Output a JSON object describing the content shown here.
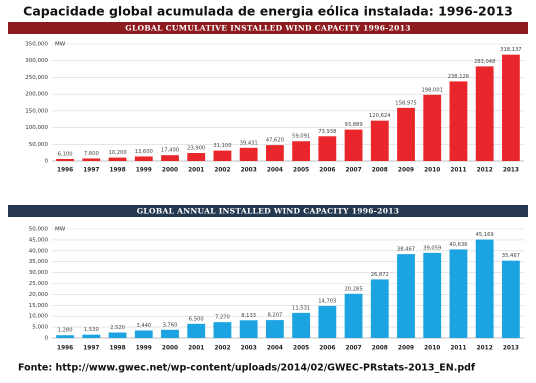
{
  "title": "Capacidade global acumulada de energia eólica instalada: 1996-2013",
  "source": "Fonte: http://www.gwec.net/wp-content/uploads/2014/02/GWEC-PRstats-2013_EN.pdf",
  "chart_data": [
    {
      "type": "bar",
      "title": "GLOBAL CUMULATIVE INSTALLED WIND CAPACITY 1996-2013",
      "ylabel": "MW",
      "header_color": "#8e1c1f",
      "color": "#e8262b",
      "grid": true,
      "categories": [
        "1996",
        "1997",
        "1998",
        "1999",
        "2000",
        "2001",
        "2002",
        "2003",
        "2004",
        "2005",
        "2006",
        "2007",
        "2008",
        "2009",
        "2010",
        "2011",
        "2012",
        "2013"
      ],
      "values": [
        6100,
        7600,
        10200,
        13600,
        17400,
        23900,
        31100,
        39431,
        47620,
        59091,
        73938,
        93889,
        120624,
        158975,
        198001,
        238126,
        283048,
        318137
      ],
      "value_labels": [
        "6,100",
        "7,600",
        "10,200",
        "13,600",
        "17,400",
        "23,900",
        "31,100",
        "39,431",
        "47,620",
        "59,091",
        "73,938",
        "93,889",
        "120,624",
        "158,975",
        "198,001",
        "238,126",
        "283,048",
        "318,137"
      ],
      "ylim": [
        0,
        350000
      ],
      "yticks": [
        0,
        {
          "value": 50000,
          "label": "50,000"
        },
        {
          "value": 100000,
          "label": "100,000"
        },
        {
          "value": 150000,
          "label": "150,000"
        },
        {
          "value": 200000,
          "label": "200,000"
        },
        {
          "value": 250000,
          "label": "250,000"
        },
        {
          "value": 300000,
          "label": "300,000"
        },
        {
          "value": 350000,
          "label": "350,000"
        }
      ]
    },
    {
      "type": "bar",
      "title": "GLOBAL ANNUAL INSTALLED WIND CAPACITY 1996-2013",
      "ylabel": "MW",
      "header_color": "#24384f",
      "color": "#1ba3e2",
      "grid": true,
      "categories": [
        "1996",
        "1997",
        "1998",
        "1999",
        "2000",
        "2001",
        "2002",
        "2003",
        "2004",
        "2005",
        "2006",
        "2007",
        "2008",
        "2009",
        "2010",
        "2011",
        "2012",
        "2013"
      ],
      "values": [
        1280,
        1530,
        2520,
        3440,
        3760,
        6500,
        7270,
        8133,
        8207,
        11531,
        14703,
        20285,
        26872,
        38467,
        39059,
        40636,
        45169,
        35467
      ],
      "value_labels": [
        "1,280",
        "1,530",
        "2,520",
        "3,440",
        "3,760",
        "6,500",
        "7,270",
        "8,133",
        "8,207",
        "11,531",
        "14,703",
        "20,285",
        "26,872",
        "38,467",
        "39,059",
        "40,636",
        "45,169",
        "35,467"
      ],
      "ylim": [
        0,
        50000
      ],
      "yticks": [
        0,
        {
          "value": 5000,
          "label": "5,000"
        },
        {
          "value": 10000,
          "label": "10,000"
        },
        {
          "value": 15000,
          "label": "15,000"
        },
        {
          "value": 20000,
          "label": "20,000"
        },
        {
          "value": 25000,
          "label": "25,000"
        },
        {
          "value": 30000,
          "label": "30,000"
        },
        {
          "value": 35000,
          "label": "35,000"
        },
        {
          "value": 40000,
          "label": "40,000"
        },
        {
          "value": 45000,
          "label": "45,000"
        },
        {
          "value": 50000,
          "label": "50,000"
        }
      ]
    }
  ]
}
